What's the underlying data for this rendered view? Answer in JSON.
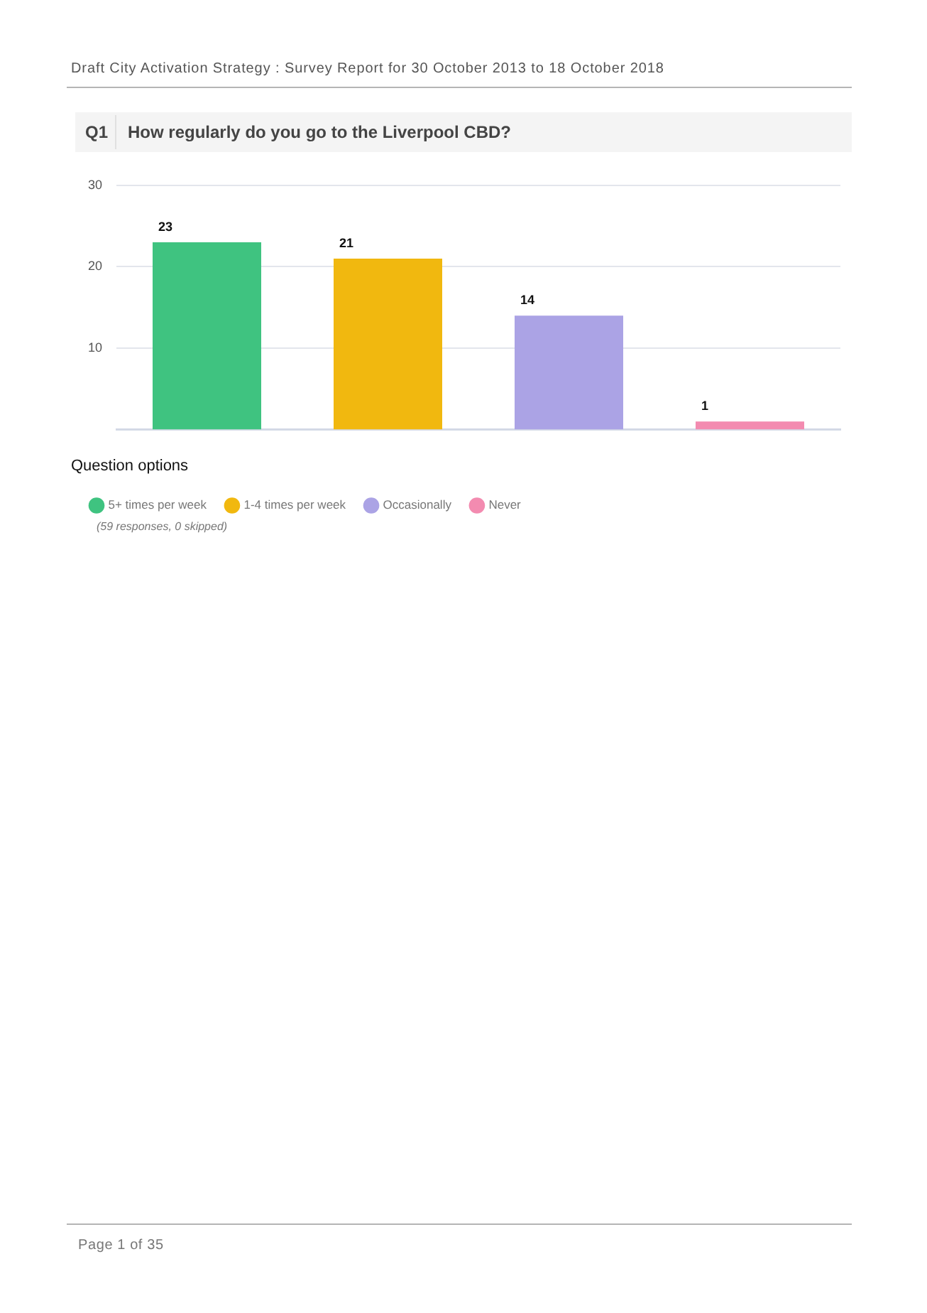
{
  "chart_data": {
    "type": "bar",
    "title": "How regularly do you go to the Liverpool CBD?",
    "categories": [
      null
    ],
    "series": [
      {
        "name": "5+ times per week",
        "color": "#3fc380",
        "values": [
          23
        ]
      },
      {
        "name": "1-4 times per week",
        "color": "#f1b80f",
        "values": [
          21
        ]
      },
      {
        "name": "Occasionally",
        "color": "#aba3e5",
        "values": [
          14
        ]
      },
      {
        "name": "Never",
        "color": "#f38bb0",
        "values": [
          1
        ]
      }
    ],
    "ylim": [
      0,
      30
    ],
    "yticks": [
      10,
      20,
      30
    ],
    "grid": "y",
    "data_labels": true,
    "legend": "bottom left",
    "legend_title": "Question options",
    "annotations": [
      "Draft City Activation Strategy : Survey Report for 30 October 2013 to 18 October 2018",
      "Q1",
      "(59 responses, 0 skipped)",
      "Page 1 of 35"
    ]
  }
}
